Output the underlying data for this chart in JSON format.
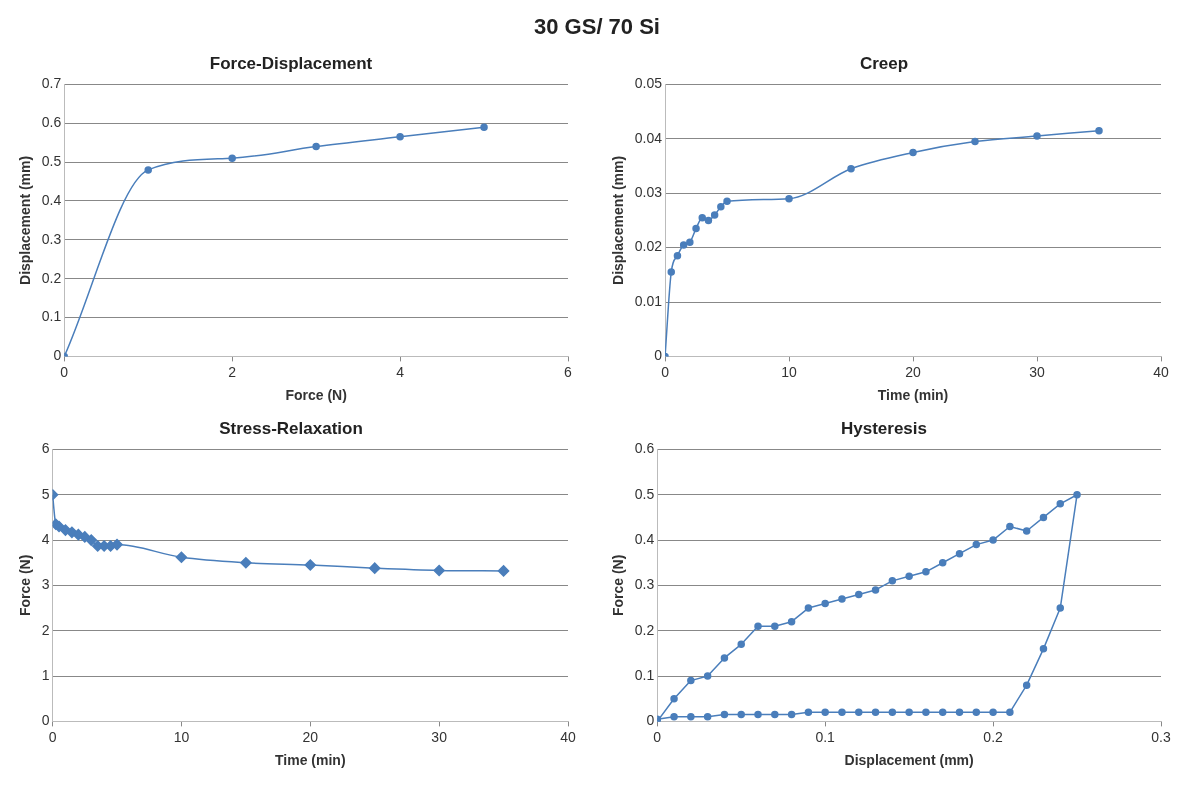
{
  "chart_data": [
    {
      "type": "other",
      "title": "30 GS/ 70 Si"
    },
    {
      "type": "line",
      "title": "Force-Displacement",
      "xlabel": "Force (N)",
      "ylabel": "Displacement (mm)",
      "xlim": [
        0,
        6
      ],
      "xticks": [
        0,
        2,
        4,
        6
      ],
      "ylim": [
        0,
        0.7
      ],
      "yticks": [
        0,
        0.1,
        0.2,
        0.3,
        0.4,
        0.5,
        0.6,
        0.7
      ],
      "grid": "y",
      "marker": "circle",
      "legend": false,
      "series": [
        {
          "color": "#4a7ebb",
          "x": [
            0,
            1,
            2,
            3,
            4,
            5
          ],
          "values": [
            0,
            0.48,
            0.51,
            0.54,
            0.565,
            0.59
          ]
        }
      ]
    },
    {
      "type": "line",
      "title": "Creep",
      "xlabel": "Time (min)",
      "ylabel": "Displacement (mm)",
      "xlim": [
        0,
        40
      ],
      "xticks": [
        0,
        10,
        20,
        30,
        40
      ],
      "ylim": [
        0,
        0.05
      ],
      "yticks": [
        0,
        0.01,
        0.02,
        0.03,
        0.04,
        0.05
      ],
      "grid": "y",
      "marker": "circle",
      "legend": false,
      "series": [
        {
          "color": "#4a7ebb",
          "x": [
            0,
            0.5,
            1,
            1.5,
            2,
            2.5,
            3,
            3.5,
            4,
            4.5,
            5,
            10,
            15,
            20,
            25,
            30,
            35
          ],
          "values": [
            0,
            0.0155,
            0.0185,
            0.0205,
            0.021,
            0.0235,
            0.0255,
            0.025,
            0.026,
            0.0275,
            0.0285,
            0.029,
            0.0345,
            0.0375,
            0.0395,
            0.0405,
            0.0415
          ]
        }
      ]
    },
    {
      "type": "line",
      "title": "Stress-Relaxation",
      "xlabel": "Time (min)",
      "ylabel": "Force (N)",
      "xlim": [
        0,
        40
      ],
      "xticks": [
        0,
        10,
        20,
        30,
        40
      ],
      "ylim": [
        0,
        6
      ],
      "yticks": [
        0,
        1,
        2,
        3,
        4,
        5,
        6
      ],
      "grid": "y",
      "marker": "diamond",
      "legend": false,
      "series": [
        {
          "color": "#4a7ebb",
          "x": [
            0,
            0.25,
            0.5,
            1,
            1.5,
            2,
            2.5,
            3,
            3.5,
            4,
            4.5,
            5,
            10,
            15,
            20,
            25,
            30,
            35
          ],
          "values": [
            5,
            4.35,
            4.3,
            4.22,
            4.17,
            4.12,
            4.07,
            4,
            3.87,
            3.87,
            3.87,
            3.9,
            3.62,
            3.5,
            3.45,
            3.38,
            3.33,
            3.32
          ]
        }
      ]
    },
    {
      "type": "line",
      "title": "Hysteresis",
      "xlabel": "Displacement (mm)",
      "ylabel": "Force (N)",
      "xlim": [
        0,
        0.3
      ],
      "xticks": [
        0,
        0.1,
        0.2,
        0.3
      ],
      "ylim": [
        0,
        0.6
      ],
      "yticks": [
        0,
        0.1,
        0.2,
        0.3,
        0.4,
        0.5,
        0.6
      ],
      "grid": "y",
      "marker": "circle",
      "legend": false,
      "series": [
        {
          "color": "#4a7ebb",
          "x": [
            0,
            0.01,
            0.02,
            0.03,
            0.04,
            0.05,
            0.06,
            0.07,
            0.08,
            0.09,
            0.1,
            0.11,
            0.12,
            0.13,
            0.14,
            0.15,
            0.16,
            0.17,
            0.18,
            0.19,
            0.2,
            0.21,
            0.22,
            0.23,
            0.24,
            0.25,
            0.24,
            0.23,
            0.22,
            0.21,
            0.2,
            0.19,
            0.18,
            0.17,
            0.16,
            0.15,
            0.14,
            0.13,
            0.12,
            0.11,
            0.1,
            0.09,
            0.08,
            0.07,
            0.06,
            0.05,
            0.04,
            0.03,
            0.02,
            0.01,
            0
          ],
          "values": [
            0,
            0.05,
            0.09,
            0.1,
            0.14,
            0.17,
            0.21,
            0.21,
            0.22,
            0.25,
            0.26,
            0.27,
            0.28,
            0.29,
            0.31,
            0.32,
            0.33,
            0.35,
            0.37,
            0.39,
            0.4,
            0.43,
            0.42,
            0.45,
            0.48,
            0.5,
            0.25,
            0.16,
            0.08,
            0.02,
            0.02,
            0.02,
            0.02,
            0.02,
            0.02,
            0.02,
            0.02,
            0.02,
            0.02,
            0.02,
            0.02,
            0.02,
            0.015,
            0.015,
            0.015,
            0.015,
            0.015,
            0.01,
            0.01,
            0.01,
            0.005
          ]
        }
      ]
    }
  ]
}
